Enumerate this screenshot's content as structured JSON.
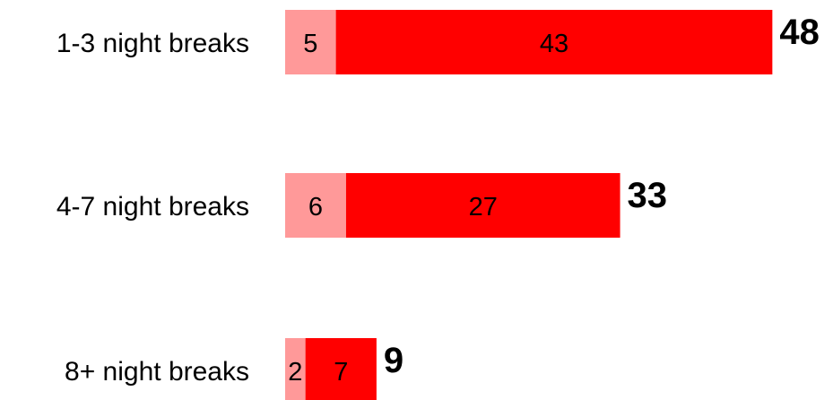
{
  "chart_data": {
    "type": "bar",
    "orientation": "horizontal",
    "stacked": true,
    "categories": [
      "1-3 night breaks",
      "4-7 night breaks",
      "8+ night breaks"
    ],
    "series": [
      {
        "values": [
          5,
          6,
          2
        ],
        "color": "#ff9999"
      },
      {
        "values": [
          43,
          27,
          7
        ],
        "color": "#ff0000"
      }
    ],
    "totals": [
      48,
      33,
      9
    ],
    "xlim": [
      0,
      48
    ],
    "grid": false,
    "legend": "none"
  }
}
